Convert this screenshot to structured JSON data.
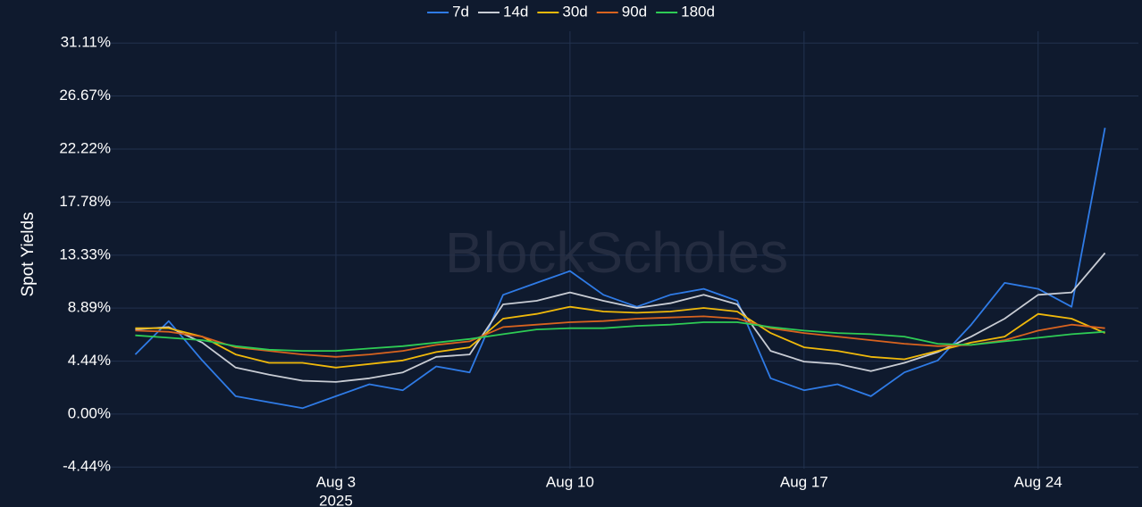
{
  "chart_data": {
    "type": "line",
    "y_label": "Spot Yields",
    "watermark": "BlockScholes",
    "x": [
      "2025-07-28",
      "2025-07-29",
      "2025-07-30",
      "2025-07-31",
      "2025-08-01",
      "2025-08-02",
      "2025-08-03",
      "2025-08-04",
      "2025-08-05",
      "2025-08-06",
      "2025-08-07",
      "2025-08-08",
      "2025-08-09",
      "2025-08-10",
      "2025-08-11",
      "2025-08-12",
      "2025-08-13",
      "2025-08-14",
      "2025-08-15",
      "2025-08-16",
      "2025-08-17",
      "2025-08-18",
      "2025-08-19",
      "2025-08-20",
      "2025-08-21",
      "2025-08-22",
      "2025-08-23",
      "2025-08-24",
      "2025-08-25",
      "2025-08-26"
    ],
    "xlim": [
      "2025-07-27",
      "2025-08-27"
    ],
    "xticks": [
      {
        "value": "2025-08-03",
        "label": "Aug 3"
      },
      {
        "value": "2025-08-10",
        "label": "Aug 10"
      },
      {
        "value": "2025-08-17",
        "label": "Aug 17"
      },
      {
        "value": "2025-08-24",
        "label": "Aug 24"
      }
    ],
    "xtick_year": "2025",
    "ylim": [
      -4.57,
      32.1
    ],
    "yticks": [
      {
        "value": -4.44,
        "label": "-4.44%"
      },
      {
        "value": 0,
        "label": "0.00%"
      },
      {
        "value": 4.44,
        "label": "4.44%"
      },
      {
        "value": 8.89,
        "label": "8.89%"
      },
      {
        "value": 13.33,
        "label": "13.33%"
      },
      {
        "value": 17.78,
        "label": "17.78%"
      },
      {
        "value": 22.22,
        "label": "22.22%"
      },
      {
        "value": 26.67,
        "label": "26.67%"
      },
      {
        "value": 31.11,
        "label": "31.11%"
      }
    ],
    "grid": true,
    "legend_position": "top",
    "series": [
      {
        "name": "7d",
        "color": "#2f7be6",
        "values": [
          5.0,
          7.8,
          4.5,
          1.5,
          1.0,
          0.5,
          1.5,
          2.5,
          2.0,
          4.0,
          3.5,
          10.0,
          11.0,
          12.0,
          10.0,
          9.0,
          10.0,
          10.5,
          9.5,
          3.0,
          2.0,
          2.5,
          1.5,
          3.5,
          4.5,
          7.5,
          11.0,
          10.5,
          9.0,
          24.0
        ]
      },
      {
        "name": "14d",
        "color": "#c8ccd4",
        "values": [
          7.1,
          7.3,
          6.0,
          3.9,
          3.3,
          2.8,
          2.7,
          3.0,
          3.5,
          4.8,
          5.0,
          9.2,
          9.5,
          10.2,
          9.5,
          8.9,
          9.3,
          10.0,
          9.2,
          5.3,
          4.4,
          4.2,
          3.6,
          4.3,
          5.2,
          6.5,
          8.0,
          10.0,
          10.2,
          13.5
        ]
      },
      {
        "name": "30d",
        "color": "#f0b90b",
        "values": [
          7.2,
          7.2,
          6.5,
          5.0,
          4.3,
          4.3,
          3.9,
          4.2,
          4.5,
          5.2,
          5.6,
          8.0,
          8.4,
          9.0,
          8.6,
          8.5,
          8.6,
          8.9,
          8.6,
          6.8,
          5.6,
          5.3,
          4.8,
          4.6,
          5.3,
          6.0,
          6.5,
          8.4,
          8.0,
          6.8
        ]
      },
      {
        "name": "90d",
        "color": "#d8631f",
        "values": [
          7.0,
          6.9,
          6.5,
          5.6,
          5.3,
          5.0,
          4.8,
          5.0,
          5.3,
          5.8,
          6.1,
          7.3,
          7.5,
          7.7,
          7.8,
          8.0,
          8.1,
          8.2,
          8.0,
          7.2,
          6.8,
          6.5,
          6.2,
          5.9,
          5.7,
          5.8,
          6.2,
          7.0,
          7.5,
          7.2
        ]
      },
      {
        "name": "180d",
        "color": "#2ecc55",
        "values": [
          6.6,
          6.4,
          6.2,
          5.7,
          5.4,
          5.3,
          5.3,
          5.5,
          5.7,
          6.0,
          6.3,
          6.7,
          7.1,
          7.2,
          7.2,
          7.4,
          7.5,
          7.7,
          7.7,
          7.3,
          7.0,
          6.8,
          6.7,
          6.5,
          5.9,
          5.8,
          6.1,
          6.4,
          6.7,
          6.9
        ]
      }
    ]
  }
}
